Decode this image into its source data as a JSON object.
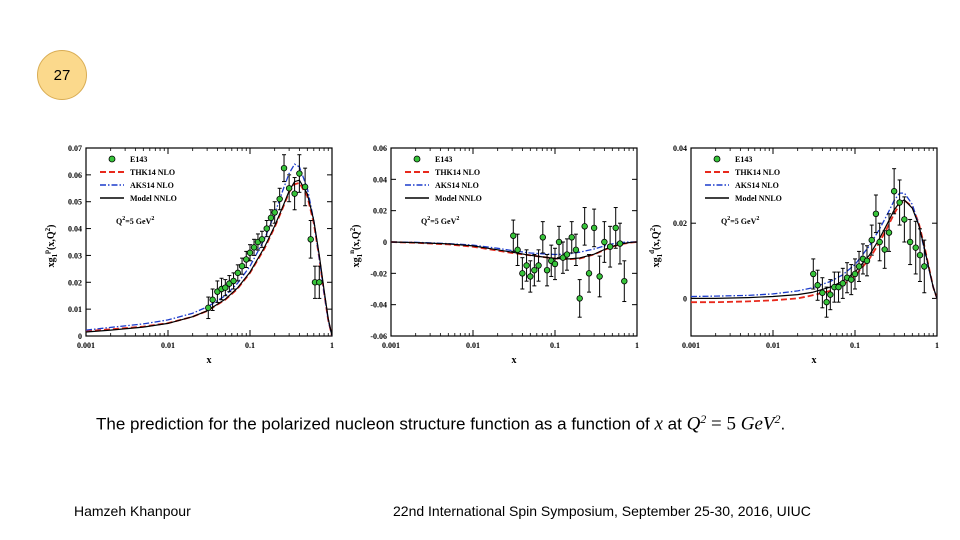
{
  "slide": {
    "number": "27"
  },
  "caption": {
    "text_before": "The prediction for the polarized nucleon structure function as a function of ",
    "math_x": "x",
    "text_mid": " at ",
    "math_q": "Q",
    "math_q_exp": "2",
    "math_eq": " = 5 ",
    "math_gev": "GeV",
    "math_gev_exp": "2",
    "text_end": "."
  },
  "footer": {
    "author": "Hamzeh Khanpour",
    "event": "22nd International Spin Symposium, September 25-30, 2016, UIUC"
  },
  "colors": {
    "thk14": "#e8291c",
    "aks14": "#1c3ccc",
    "model": "#000000",
    "e143_fill": "#37c43a"
  },
  "chart_data": [
    {
      "type": "scatter",
      "target": "proton",
      "title": "",
      "xlabel": "x",
      "ylabel": "xg",
      "ylabel_sub": "1",
      "ylabel_sup": "p",
      "ylabel_tail": "(x,Q",
      "ylabel_tail_sup": "2",
      "ylabel_close": ")",
      "x_scale": "log",
      "xlim": [
        0.001,
        1
      ],
      "ylim": [
        0,
        0.07
      ],
      "x_ticks": [
        0.001,
        0.01,
        0.1,
        1
      ],
      "x_tick_labels": [
        "0.001",
        "0.01",
        "0.1",
        "1"
      ],
      "y_ticks": [
        0,
        0.01,
        0.02,
        0.03,
        0.04,
        0.05,
        0.06,
        0.07
      ],
      "y_tick_labels": [
        "0",
        "0.01",
        "0.02",
        "0.03",
        "0.04",
        "0.05",
        "0.06",
        "0.07"
      ],
      "annotation": "Q",
      "annotation_sup": "2",
      "annotation_tail": "=5 GeV",
      "annotation_tail_sup": "2",
      "legend_position": "top-left",
      "legend": [
        "E143",
        "THK14 NLO",
        "AKS14 NLO",
        "Model NNLO"
      ],
      "series": [
        {
          "name": "E143",
          "kind": "points",
          "x": [
            0.031,
            0.035,
            0.04,
            0.045,
            0.05,
            0.056,
            0.063,
            0.071,
            0.08,
            0.09,
            0.1,
            0.112,
            0.125,
            0.14,
            0.16,
            0.18,
            0.2,
            0.23,
            0.26,
            0.3,
            0.35,
            0.4,
            0.47,
            0.55,
            0.62,
            0.7
          ],
          "y": [
            0.0105,
            0.0135,
            0.0165,
            0.0175,
            0.018,
            0.0195,
            0.0205,
            0.0235,
            0.026,
            0.0285,
            0.031,
            0.033,
            0.035,
            0.036,
            0.04,
            0.044,
            0.046,
            0.051,
            0.0625,
            0.055,
            0.053,
            0.0605,
            0.0555,
            0.036,
            0.02,
            0.02
          ],
          "err": [
            0.004,
            0.004,
            0.004,
            0.004,
            0.003,
            0.003,
            0.003,
            0.003,
            0.003,
            0.003,
            0.003,
            0.003,
            0.003,
            0.003,
            0.003,
            0.003,
            0.004,
            0.004,
            0.005,
            0.005,
            0.006,
            0.007,
            0.007,
            0.007,
            0.006,
            0.006
          ]
        },
        {
          "name": "THK14 NLO",
          "kind": "curve",
          "x": [
            0.001,
            0.002,
            0.005,
            0.01,
            0.02,
            0.03,
            0.05,
            0.07,
            0.1,
            0.15,
            0.2,
            0.25,
            0.3,
            0.35,
            0.4,
            0.5,
            0.6,
            0.7,
            0.8,
            0.9,
            1
          ],
          "y": [
            0.0018,
            0.0025,
            0.0035,
            0.0048,
            0.0072,
            0.0093,
            0.0135,
            0.0175,
            0.0235,
            0.0325,
            0.0405,
            0.0475,
            0.0535,
            0.0565,
            0.057,
            0.052,
            0.042,
            0.029,
            0.016,
            0.006,
            0.0
          ]
        },
        {
          "name": "AKS14 NLO",
          "kind": "curve",
          "x": [
            0.001,
            0.002,
            0.005,
            0.01,
            0.02,
            0.03,
            0.05,
            0.07,
            0.1,
            0.15,
            0.2,
            0.25,
            0.3,
            0.35,
            0.4,
            0.5,
            0.6,
            0.7,
            0.8,
            0.9,
            1
          ],
          "y": [
            0.0022,
            0.0032,
            0.0045,
            0.006,
            0.0085,
            0.0108,
            0.015,
            0.0195,
            0.026,
            0.036,
            0.0455,
            0.054,
            0.0605,
            0.064,
            0.063,
            0.055,
            0.043,
            0.029,
            0.016,
            0.006,
            0.0
          ]
        },
        {
          "name": "Model NNLO",
          "kind": "curve",
          "x": [
            0.001,
            0.002,
            0.005,
            0.01,
            0.02,
            0.03,
            0.05,
            0.07,
            0.1,
            0.15,
            0.2,
            0.25,
            0.3,
            0.35,
            0.4,
            0.5,
            0.6,
            0.7,
            0.8,
            0.9,
            1
          ],
          "y": [
            0.0015,
            0.0022,
            0.0033,
            0.0047,
            0.0072,
            0.0094,
            0.0137,
            0.0178,
            0.0238,
            0.033,
            0.041,
            0.048,
            0.054,
            0.0575,
            0.058,
            0.053,
            0.043,
            0.03,
            0.017,
            0.0065,
            0.0
          ]
        }
      ]
    },
    {
      "type": "scatter",
      "target": "neutron",
      "title": "",
      "xlabel": "x",
      "ylabel": "xg",
      "ylabel_sub": "1",
      "ylabel_sup": "n",
      "ylabel_tail": "(x,Q",
      "ylabel_tail_sup": "2",
      "ylabel_close": ")",
      "x_scale": "log",
      "xlim": [
        0.001,
        1
      ],
      "ylim": [
        -0.06,
        0.06
      ],
      "x_ticks": [
        0.001,
        0.01,
        0.1,
        1
      ],
      "x_tick_labels": [
        "0.001",
        "0.01",
        "0.1",
        "1"
      ],
      "y_ticks": [
        -0.06,
        -0.04,
        -0.02,
        0,
        0.02,
        0.04,
        0.06
      ],
      "y_tick_labels": [
        "-0.06",
        "-0.04",
        "-0.02",
        "0",
        "0.02",
        "0.04",
        "0.06"
      ],
      "annotation": "Q",
      "annotation_sup": "2",
      "annotation_tail": "=5 GeV",
      "annotation_tail_sup": "2",
      "legend_position": "top-left",
      "legend": [
        "E143",
        "THK14 NLO",
        "AKS14 NLO",
        "Model NNLO"
      ],
      "series": [
        {
          "name": "E143",
          "kind": "points",
          "x": [
            0.031,
            0.035,
            0.04,
            0.045,
            0.05,
            0.056,
            0.063,
            0.071,
            0.08,
            0.09,
            0.1,
            0.112,
            0.125,
            0.14,
            0.16,
            0.18,
            0.2,
            0.23,
            0.26,
            0.3,
            0.35,
            0.4,
            0.47,
            0.55,
            0.62,
            0.7
          ],
          "y": [
            0.004,
            -0.005,
            -0.02,
            -0.015,
            -0.022,
            -0.018,
            -0.015,
            0.003,
            -0.018,
            -0.012,
            -0.014,
            0.0,
            -0.01,
            -0.008,
            0.003,
            -0.005,
            -0.036,
            0.01,
            -0.02,
            0.009,
            -0.022,
            0.0,
            -0.003,
            0.009,
            -0.001,
            -0.025
          ],
          "err": [
            0.01,
            0.01,
            0.01,
            0.01,
            0.01,
            0.01,
            0.01,
            0.01,
            0.01,
            0.01,
            0.01,
            0.01,
            0.01,
            0.01,
            0.01,
            0.01,
            0.012,
            0.012,
            0.012,
            0.012,
            0.013,
            0.013,
            0.013,
            0.013,
            0.013,
            0.013
          ]
        },
        {
          "name": "THK14 NLO",
          "kind": "curve",
          "x": [
            0.001,
            0.002,
            0.005,
            0.01,
            0.02,
            0.03,
            0.05,
            0.07,
            0.1,
            0.15,
            0.2,
            0.3,
            0.4,
            0.5,
            0.6,
            0.7,
            0.8,
            0.9,
            1
          ],
          "y": [
            0.0,
            -0.0005,
            -0.0015,
            -0.003,
            -0.0055,
            -0.007,
            -0.0085,
            -0.0095,
            -0.0105,
            -0.011,
            -0.0105,
            -0.008,
            -0.005,
            -0.003,
            -0.0018,
            -0.001,
            -0.0005,
            -0.0002,
            0.0
          ]
        },
        {
          "name": "AKS14 NLO",
          "kind": "curve",
          "x": [
            0.001,
            0.002,
            0.005,
            0.01,
            0.02,
            0.03,
            0.05,
            0.07,
            0.1,
            0.15,
            0.2,
            0.3,
            0.4,
            0.5,
            0.6,
            0.7,
            0.8,
            0.9,
            1
          ],
          "y": [
            0.0,
            -0.0002,
            -0.001,
            -0.002,
            -0.004,
            -0.0055,
            -0.007,
            -0.0075,
            -0.008,
            -0.0075,
            -0.0065,
            -0.0045,
            -0.0025,
            -0.0012,
            -0.0006,
            -0.0002,
            0.0,
            0.0,
            0.0
          ]
        },
        {
          "name": "Model NNLO",
          "kind": "curve",
          "x": [
            0.001,
            0.002,
            0.005,
            0.01,
            0.02,
            0.03,
            0.05,
            0.07,
            0.1,
            0.15,
            0.2,
            0.3,
            0.4,
            0.5,
            0.6,
            0.7,
            0.8,
            0.9,
            1
          ],
          "y": [
            0.0,
            -0.0004,
            -0.0012,
            -0.0025,
            -0.005,
            -0.0065,
            -0.0085,
            -0.0095,
            -0.0105,
            -0.0108,
            -0.0102,
            -0.0078,
            -0.0048,
            -0.0028,
            -0.0016,
            -0.0009,
            -0.0004,
            -0.0001,
            0.0
          ]
        }
      ]
    },
    {
      "type": "scatter",
      "target": "deuteron",
      "title": "",
      "xlabel": "x",
      "ylabel": "xg",
      "ylabel_sub": "1",
      "ylabel_sup": "d",
      "ylabel_tail": "(x,Q",
      "ylabel_tail_sup": "2",
      "ylabel_close": ")",
      "x_scale": "log",
      "xlim": [
        0.001,
        1
      ],
      "ylim": [
        -0.01,
        0.04
      ],
      "x_ticks": [
        0.001,
        0.01,
        0.1,
        1
      ],
      "x_tick_labels": [
        "0.001",
        "0.01",
        "0.1",
        "1"
      ],
      "y_ticks": [
        0,
        0.02,
        0.04
      ],
      "y_tick_labels": [
        "0",
        "0.02",
        "0.04"
      ],
      "annotation": "Q",
      "annotation_sup": "2",
      "annotation_tail": "=5 GeV",
      "annotation_tail_sup": "2",
      "legend_position": "top-left",
      "legend": [
        "E143",
        "THK14 NLO",
        "AKS14 NLO",
        "Model NNLO"
      ],
      "series": [
        {
          "name": "E143",
          "kind": "points",
          "x": [
            0.031,
            0.035,
            0.04,
            0.045,
            0.05,
            0.056,
            0.063,
            0.071,
            0.08,
            0.09,
            0.1,
            0.112,
            0.125,
            0.14,
            0.16,
            0.18,
            0.2,
            0.23,
            0.26,
            0.3,
            0.35,
            0.4,
            0.47,
            0.55,
            0.62,
            0.7
          ],
          "y": [
            0.0065,
            0.0035,
            0.0015,
            -0.001,
            0.001,
            0.003,
            0.003,
            0.004,
            0.0055,
            0.005,
            0.0065,
            0.0085,
            0.0105,
            0.01,
            0.0155,
            0.0225,
            0.015,
            0.013,
            0.0175,
            0.0285,
            0.0255,
            0.021,
            0.015,
            0.0135,
            0.0115,
            0.0085
          ],
          "err": [
            0.004,
            0.004,
            0.004,
            0.004,
            0.004,
            0.004,
            0.004,
            0.004,
            0.004,
            0.004,
            0.004,
            0.004,
            0.004,
            0.004,
            0.004,
            0.005,
            0.005,
            0.005,
            0.005,
            0.006,
            0.006,
            0.006,
            0.006,
            0.007,
            0.007,
            0.007
          ]
        },
        {
          "name": "THK14 NLO",
          "kind": "curve",
          "x": [
            0.001,
            0.002,
            0.005,
            0.01,
            0.02,
            0.03,
            0.05,
            0.07,
            0.1,
            0.15,
            0.2,
            0.25,
            0.3,
            0.35,
            0.4,
            0.5,
            0.6,
            0.7,
            0.8,
            0.9,
            1
          ],
          "y": [
            -0.001,
            -0.001,
            -0.0008,
            -0.0005,
            0.0,
            0.0008,
            0.002,
            0.0035,
            0.006,
            0.0105,
            0.015,
            0.019,
            0.0225,
            0.025,
            0.026,
            0.0245,
            0.02,
            0.014,
            0.008,
            0.003,
            0.0
          ]
        },
        {
          "name": "AKS14 NLO",
          "kind": "curve",
          "x": [
            0.001,
            0.002,
            0.005,
            0.01,
            0.02,
            0.03,
            0.05,
            0.07,
            0.1,
            0.15,
            0.2,
            0.25,
            0.3,
            0.35,
            0.4,
            0.5,
            0.6,
            0.7,
            0.8,
            0.9,
            1
          ],
          "y": [
            0.0005,
            0.0006,
            0.0008,
            0.0012,
            0.002,
            0.0028,
            0.0045,
            0.0062,
            0.009,
            0.014,
            0.0185,
            0.0225,
            0.026,
            0.028,
            0.028,
            0.025,
            0.0195,
            0.013,
            0.0075,
            0.003,
            0.0
          ]
        },
        {
          "name": "Model NNLO",
          "kind": "curve",
          "x": [
            0.001,
            0.002,
            0.005,
            0.01,
            0.02,
            0.03,
            0.05,
            0.07,
            0.1,
            0.15,
            0.2,
            0.25,
            0.3,
            0.35,
            0.4,
            0.5,
            0.6,
            0.7,
            0.8,
            0.9,
            1
          ],
          "y": [
            0.0,
            0.0,
            0.0002,
            0.0005,
            0.001,
            0.0016,
            0.003,
            0.0045,
            0.007,
            0.0115,
            0.016,
            0.02,
            0.0235,
            0.0255,
            0.0262,
            0.024,
            0.0195,
            0.0135,
            0.0078,
            0.003,
            0.0
          ]
        }
      ]
    }
  ]
}
